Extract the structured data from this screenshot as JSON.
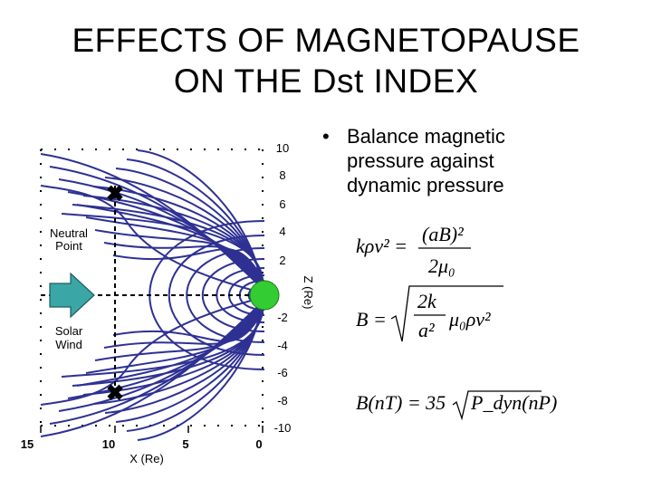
{
  "title": {
    "line1": "EFFECTS OF MAGNETOPAUSE",
    "line2": "ON THE Dst INDEX"
  },
  "bullet": {
    "marker": "•",
    "text": "Balance magnetic pressure against dynamic pressure"
  },
  "diagram": {
    "z_axis_label": "Z (Re)",
    "x_axis_label": "X (Re)",
    "z_ticks": [
      "10",
      "8",
      "6",
      "4",
      "2",
      "-2",
      "-4",
      "-6",
      "-8",
      "-10"
    ],
    "x_ticks": [
      "15",
      "10",
      "5",
      "0"
    ],
    "neutral_point_label": "Neutral\nPoint",
    "solar_wind_label": "Solar\nWind",
    "earth_color": "#33cc33",
    "field_line_color": "#2e3192",
    "arrow_color": "#3aa6a6",
    "neutral_point_marker": "✖"
  },
  "equations": {
    "eq1": {
      "lhs": "kρv² =",
      "numerator": "(aB)²",
      "denominator": "2μ₀"
    },
    "eq2": {
      "lhs": "B =",
      "radicand_fraction_num": "2k",
      "radicand_fraction_den": "a²",
      "radicand_rest": "μ₀ρv²"
    },
    "eq3": {
      "lhs": "B(nT) = 35",
      "radicand": "P_dyn(nP)"
    }
  }
}
